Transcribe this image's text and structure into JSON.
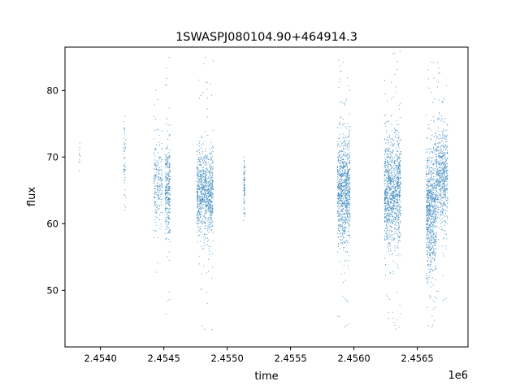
{
  "chart_data": {
    "type": "scatter",
    "title": "1SWASPJ080104.90+464914.3",
    "xlabel": "time",
    "ylabel": "flux",
    "x_offset_label": "1e6",
    "xlim": [
      2.45372,
      2.4569
    ],
    "ylim": [
      41.5,
      86.5
    ],
    "x_ticks": [
      2.454,
      2.4545,
      2.455,
      2.4555,
      2.456,
      2.4565
    ],
    "x_tick_labels": [
      "2.4540",
      "2.4545",
      "2.4550",
      "2.4555",
      "2.4560",
      "2.4565"
    ],
    "y_ticks": [
      50,
      60,
      70,
      80
    ],
    "y_tick_labels": [
      "50",
      "60",
      "70",
      "80"
    ],
    "grid": false,
    "marker_color": "#1f77b4",
    "clusters": [
      {
        "x": [
          2.45383,
          2.45384
        ],
        "center": 70,
        "spread": 1.5,
        "min": 67.5,
        "max": 73.0,
        "n": 12
      },
      {
        "x": [
          2.45418,
          2.4542
        ],
        "center": 69,
        "spread": 3.5,
        "min": 62.0,
        "max": 76.5,
        "n": 50
      },
      {
        "x": [
          2.45442,
          2.45449
        ],
        "center": 66,
        "spread": 3.5,
        "min": 49.5,
        "max": 81.0,
        "n": 220
      },
      {
        "x": [
          2.45451,
          2.45455
        ],
        "center": 65,
        "spread": 3.5,
        "min": 45.0,
        "max": 86.0,
        "n": 300
      },
      {
        "x": [
          2.45476,
          2.45489
        ],
        "center": 64.5,
        "spread": 3.2,
        "min": 44.0,
        "max": 85.0,
        "n": 900
      },
      {
        "x": [
          2.45513,
          2.45514
        ],
        "center": 65,
        "spread": 2.0,
        "min": 60.5,
        "max": 70.0,
        "n": 80
      },
      {
        "x": [
          2.45587,
          2.45597
        ],
        "center": 65,
        "spread": 4.0,
        "min": 44.0,
        "max": 85.5,
        "n": 900
      },
      {
        "x": [
          2.45624,
          2.45637
        ],
        "center": 65,
        "spread": 4.0,
        "min": 43.5,
        "max": 86.0,
        "n": 1100
      },
      {
        "x": [
          2.45657,
          2.45665
        ],
        "center": 62,
        "spread": 5.0,
        "min": 44.0,
        "max": 85.5,
        "n": 800
      },
      {
        "x": [
          2.45665,
          2.45674
        ],
        "center": 67,
        "spread": 3.5,
        "min": 48.0,
        "max": 85.0,
        "n": 600
      }
    ]
  }
}
